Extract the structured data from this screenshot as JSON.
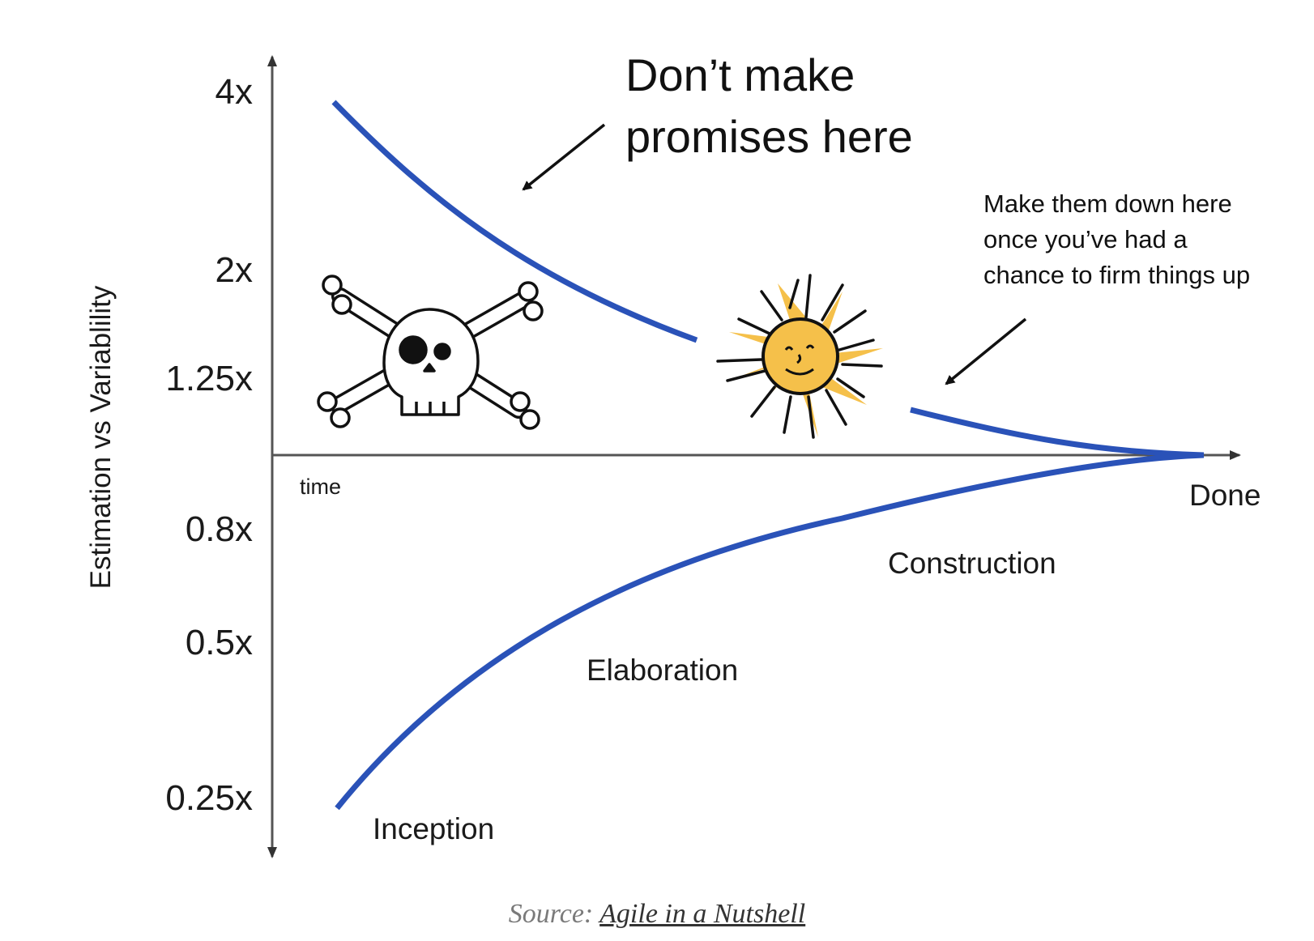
{
  "diagram": {
    "y_axis_label": "Estimation vs Variablility",
    "x_axis_label": "time",
    "end_label": "Done",
    "y_ticks": [
      "4x",
      "2x",
      "1.25x",
      "0.8x",
      "0.5x",
      "0.25x"
    ],
    "phases": [
      "Inception",
      "Elaboration",
      "Construction"
    ],
    "callout_top": {
      "line1": "Don’t make",
      "line2": "promises here"
    },
    "callout_right": {
      "line1": "Make them down here",
      "line2": "once you’ve had a",
      "line3": "chance to firm things up"
    },
    "curve_color": "#2a52b8",
    "sun_color": "#f5c04a",
    "icons": [
      "skull-crossbones-icon",
      "sun-icon"
    ]
  },
  "source": {
    "prefix": "Source:",
    "link_text": "Agile in a Nutshell"
  }
}
